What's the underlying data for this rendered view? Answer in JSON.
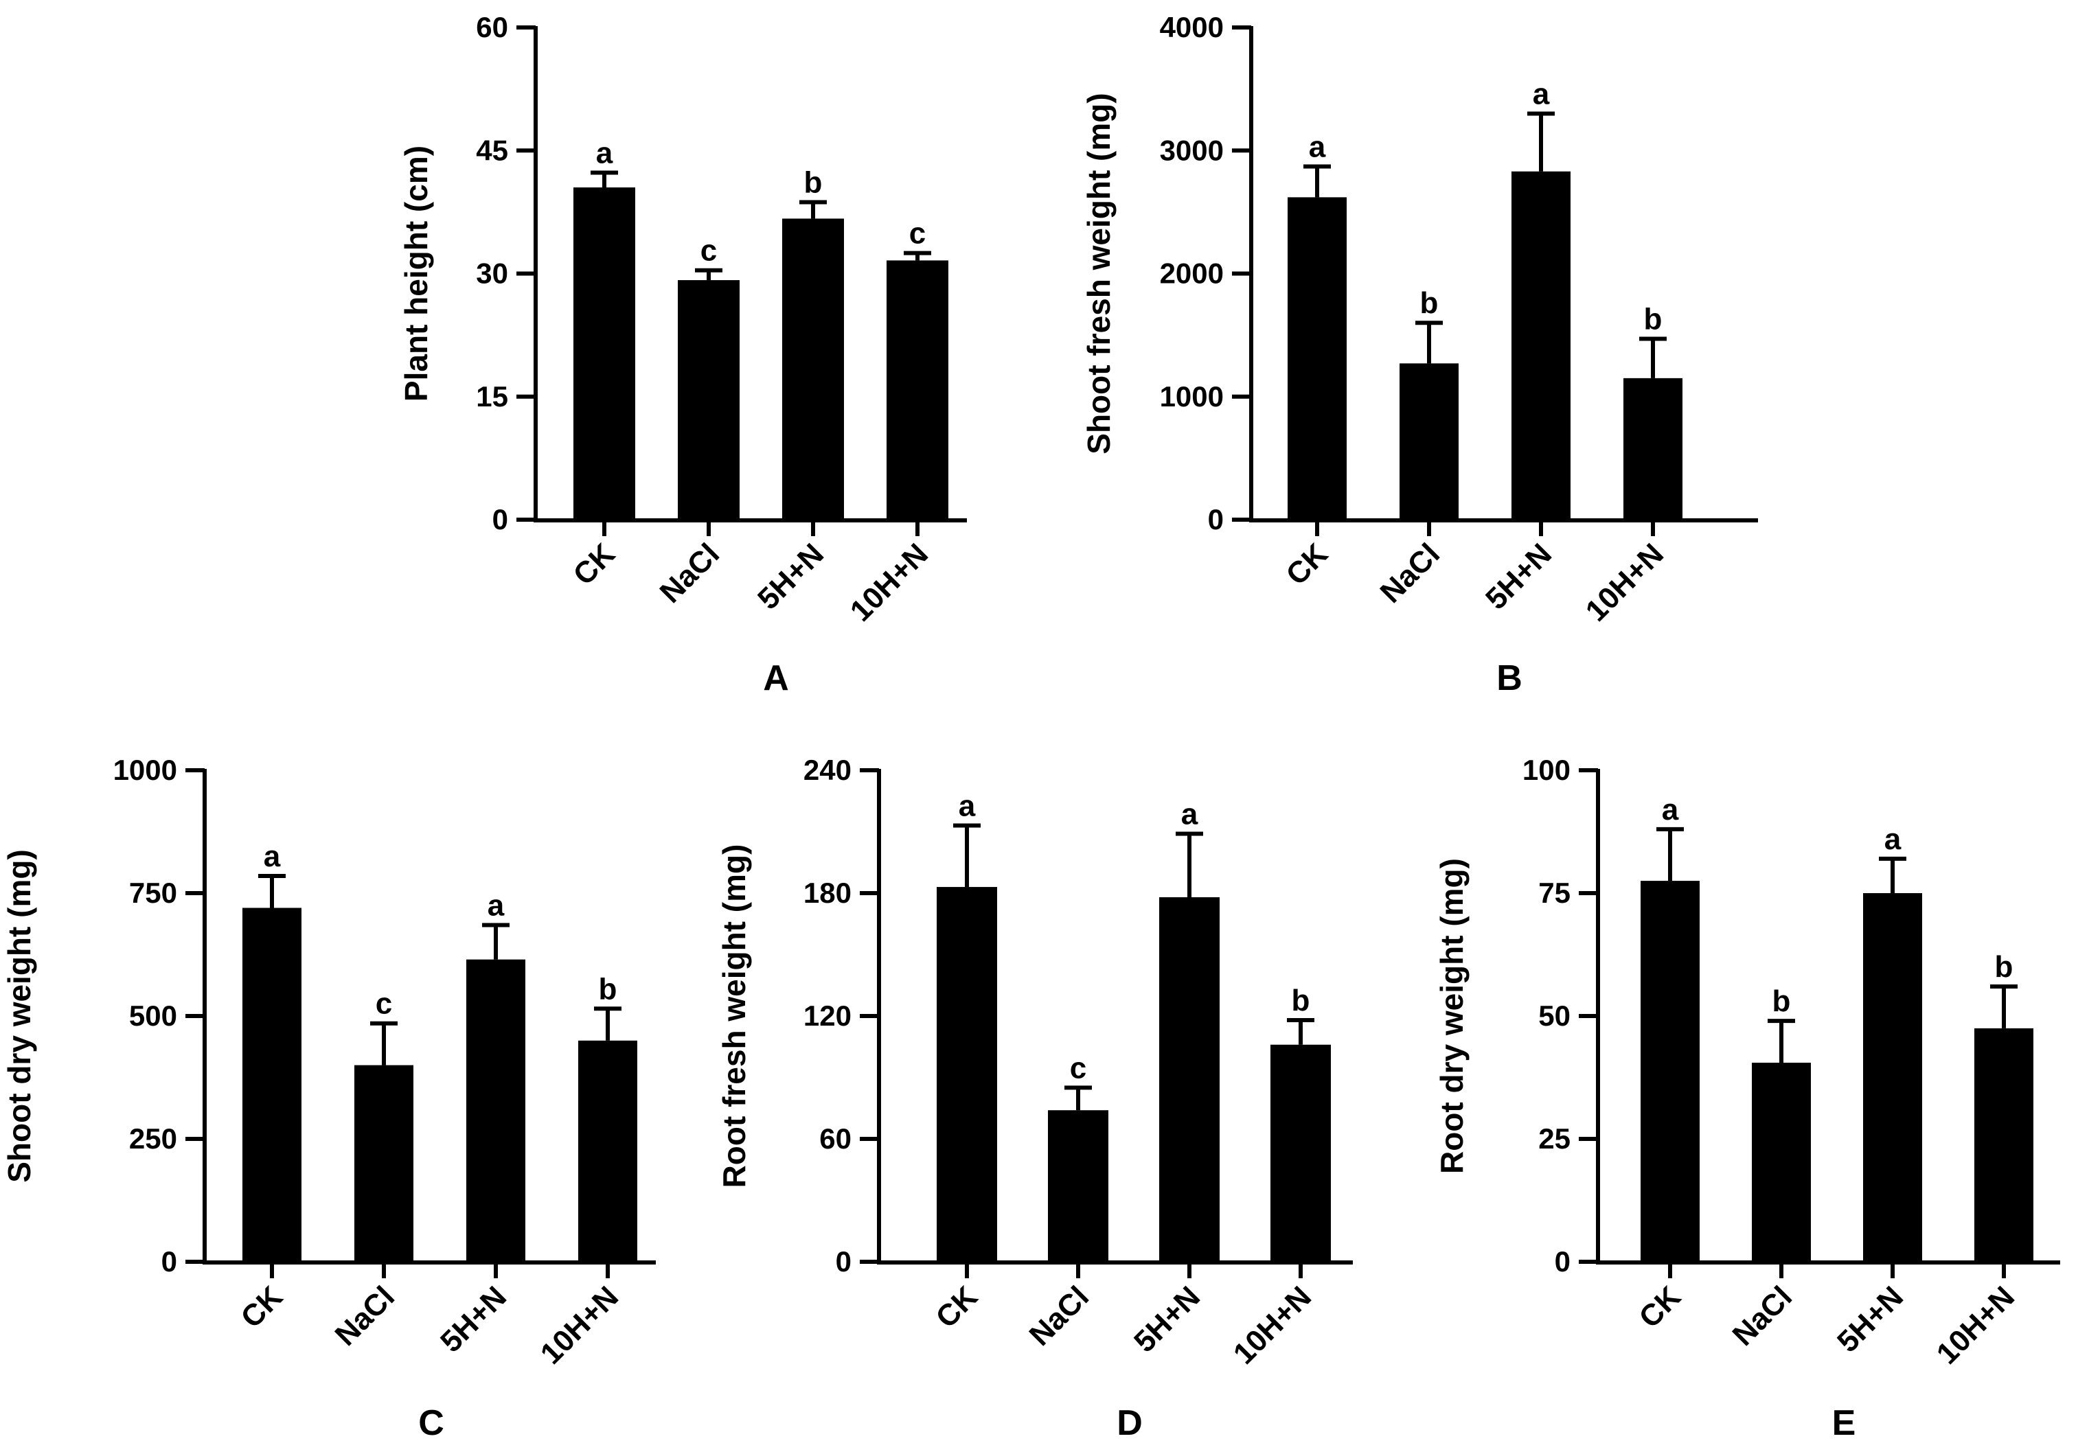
{
  "colors": {
    "bar": "#000000",
    "axis": "#000000",
    "background": "#ffffff"
  },
  "chart_data": [
    {
      "panel_label": "A",
      "type": "bar",
      "categories": [
        "CK",
        "NaCl",
        "5H+N",
        "10H+N"
      ],
      "values": [
        40.5,
        29.2,
        36.7,
        31.6
      ],
      "errors": [
        1.8,
        1.2,
        2.0,
        0.9
      ],
      "sig_letters": [
        "a",
        "c",
        "b",
        "c"
      ],
      "ylabel": "Plant height (cm)",
      "ylim": [
        0,
        60
      ],
      "yticks": [
        0,
        15,
        30,
        45,
        60
      ],
      "ytick_labels": [
        "0",
        "15",
        "30",
        "45",
        "60"
      ]
    },
    {
      "panel_label": "B",
      "type": "bar",
      "categories": [
        "CK",
        "NaCl",
        "5H+N",
        "10H+N"
      ],
      "values": [
        2620,
        1270,
        2830,
        1150
      ],
      "errors": [
        250,
        330,
        470,
        320
      ],
      "sig_letters": [
        "a",
        "b",
        "a",
        "b"
      ],
      "ylabel": "Shoot fresh weight (mg)",
      "ylim": [
        0,
        4000
      ],
      "yticks": [
        0,
        1000,
        2000,
        3000,
        4000
      ],
      "ytick_labels": [
        "0",
        "1000",
        "2000",
        "3000",
        "4000"
      ]
    },
    {
      "panel_label": "C",
      "type": "bar",
      "categories": [
        "CK",
        "NaCl",
        "5H+N",
        "10H+N"
      ],
      "values": [
        720,
        400,
        615,
        450
      ],
      "errors": [
        65,
        85,
        70,
        65
      ],
      "sig_letters": [
        "a",
        "c",
        "a",
        "b"
      ],
      "ylabel": "Shoot dry weight (mg)",
      "ylim": [
        0,
        1000
      ],
      "yticks": [
        0,
        250,
        500,
        750,
        1000
      ],
      "ytick_labels": [
        "0",
        "250",
        "500",
        "750",
        "1000"
      ]
    },
    {
      "panel_label": "D",
      "type": "bar",
      "categories": [
        "CK",
        "NaCl",
        "5H+N",
        "10H+N"
      ],
      "values": [
        183,
        74,
        178,
        106
      ],
      "errors": [
        30,
        11,
        31,
        12
      ],
      "sig_letters": [
        "a",
        "c",
        "a",
        "b"
      ],
      "ylabel": "Root fresh weight (mg)",
      "ylim": [
        0,
        240
      ],
      "yticks": [
        0,
        60,
        120,
        180,
        240
      ],
      "ytick_labels": [
        "0",
        "60",
        "120",
        "180",
        "240"
      ]
    },
    {
      "panel_label": "E",
      "type": "bar",
      "categories": [
        "CK",
        "NaCl",
        "5H+N",
        "10H+N"
      ],
      "values": [
        77.5,
        40.5,
        75,
        47.5
      ],
      "errors": [
        10.5,
        8.5,
        7,
        8.5
      ],
      "sig_letters": [
        "a",
        "b",
        "a",
        "b"
      ],
      "ylabel": "Root dry weight (mg)",
      "ylim": [
        0,
        100
      ],
      "yticks": [
        0,
        25,
        50,
        75,
        100
      ],
      "ytick_labels": [
        "0",
        "25",
        "50",
        "75",
        "100"
      ]
    }
  ]
}
